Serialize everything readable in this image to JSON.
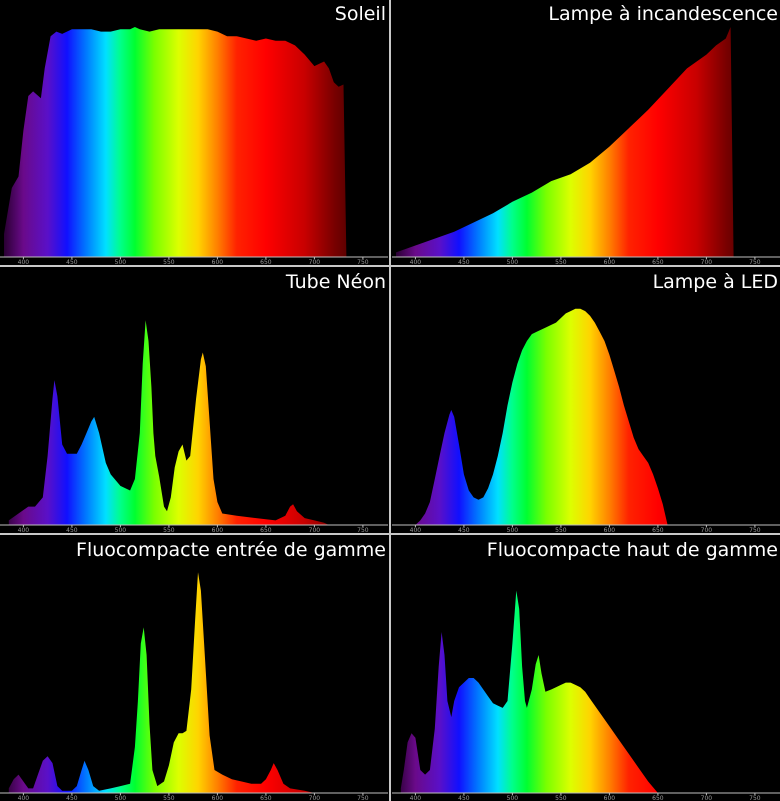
{
  "chart_data": [
    {
      "type": "area",
      "title": "Soleil",
      "xlim": [
        380,
        750
      ],
      "x_ticks": [
        400,
        450,
        500,
        550,
        600,
        650,
        700,
        750
      ],
      "ylim": [
        0,
        100
      ],
      "points": [
        [
          380,
          10
        ],
        [
          388,
          30
        ],
        [
          395,
          35
        ],
        [
          400,
          55
        ],
        [
          405,
          70
        ],
        [
          410,
          72
        ],
        [
          418,
          69
        ],
        [
          422,
          82
        ],
        [
          428,
          96
        ],
        [
          434,
          98
        ],
        [
          440,
          97
        ],
        [
          450,
          99
        ],
        [
          460,
          99
        ],
        [
          470,
          99
        ],
        [
          480,
          98
        ],
        [
          490,
          98
        ],
        [
          500,
          99
        ],
        [
          510,
          99
        ],
        [
          515,
          100
        ],
        [
          520,
          99
        ],
        [
          530,
          98
        ],
        [
          540,
          99
        ],
        [
          550,
          99
        ],
        [
          560,
          99
        ],
        [
          570,
          99
        ],
        [
          580,
          99
        ],
        [
          590,
          99
        ],
        [
          600,
          98
        ],
        [
          610,
          96
        ],
        [
          620,
          96
        ],
        [
          630,
          95
        ],
        [
          640,
          94
        ],
        [
          650,
          95
        ],
        [
          660,
          94
        ],
        [
          670,
          94
        ],
        [
          680,
          92
        ],
        [
          690,
          88
        ],
        [
          700,
          83
        ],
        [
          705,
          84
        ],
        [
          710,
          85
        ],
        [
          715,
          82
        ],
        [
          720,
          76
        ],
        [
          725,
          74
        ],
        [
          730,
          75
        ],
        [
          733,
          0
        ]
      ]
    },
    {
      "type": "area",
      "title": "Lampe à incandescence",
      "xlim": [
        380,
        750
      ],
      "x_ticks": [
        400,
        450,
        500,
        550,
        600,
        650,
        700,
        750
      ],
      "ylim": [
        0,
        100
      ],
      "points": [
        [
          380,
          2
        ],
        [
          400,
          5
        ],
        [
          420,
          8
        ],
        [
          440,
          11
        ],
        [
          460,
          15
        ],
        [
          480,
          19
        ],
        [
          500,
          24
        ],
        [
          520,
          28
        ],
        [
          540,
          33
        ],
        [
          560,
          36
        ],
        [
          580,
          41
        ],
        [
          600,
          48
        ],
        [
          620,
          56
        ],
        [
          640,
          64
        ],
        [
          660,
          73
        ],
        [
          680,
          82
        ],
        [
          700,
          88
        ],
        [
          710,
          92
        ],
        [
          720,
          95
        ],
        [
          725,
          100
        ],
        [
          728,
          0
        ]
      ]
    },
    {
      "type": "area",
      "title": "Tube Néon",
      "xlim": [
        380,
        750
      ],
      "x_ticks": [
        400,
        450,
        500,
        550,
        600,
        650,
        700,
        750
      ],
      "ylim": [
        0,
        100
      ],
      "points": [
        [
          385,
          2
        ],
        [
          395,
          5
        ],
        [
          405,
          8
        ],
        [
          412,
          8
        ],
        [
          420,
          12
        ],
        [
          425,
          30
        ],
        [
          430,
          55
        ],
        [
          432,
          63
        ],
        [
          435,
          56
        ],
        [
          440,
          35
        ],
        [
          445,
          31
        ],
        [
          450,
          31
        ],
        [
          455,
          31
        ],
        [
          460,
          35
        ],
        [
          465,
          40
        ],
        [
          470,
          45
        ],
        [
          473,
          47
        ],
        [
          478,
          40
        ],
        [
          485,
          27
        ],
        [
          490,
          22
        ],
        [
          500,
          17
        ],
        [
          510,
          15
        ],
        [
          515,
          20
        ],
        [
          520,
          40
        ],
        [
          523,
          70
        ],
        [
          526,
          89
        ],
        [
          529,
          80
        ],
        [
          532,
          60
        ],
        [
          534,
          40
        ],
        [
          536,
          30
        ],
        [
          540,
          21
        ],
        [
          545,
          8
        ],
        [
          548,
          6
        ],
        [
          552,
          12
        ],
        [
          556,
          25
        ],
        [
          560,
          32
        ],
        [
          564,
          35
        ],
        [
          568,
          28
        ],
        [
          572,
          30
        ],
        [
          578,
          55
        ],
        [
          583,
          72
        ],
        [
          585,
          75
        ],
        [
          588,
          69
        ],
        [
          592,
          45
        ],
        [
          596,
          20
        ],
        [
          600,
          10
        ],
        [
          605,
          5
        ],
        [
          620,
          4
        ],
        [
          640,
          3
        ],
        [
          660,
          2
        ],
        [
          670,
          4
        ],
        [
          675,
          8
        ],
        [
          678,
          9
        ],
        [
          682,
          6
        ],
        [
          690,
          3
        ],
        [
          700,
          2
        ],
        [
          710,
          1
        ],
        [
          715,
          0
        ]
      ]
    },
    {
      "type": "area",
      "title": "Lampe à LED",
      "xlim": [
        380,
        750
      ],
      "x_ticks": [
        400,
        450,
        500,
        550,
        600,
        650,
        700,
        750
      ],
      "ylim": [
        0,
        100
      ],
      "points": [
        [
          400,
          0
        ],
        [
          405,
          2
        ],
        [
          410,
          5
        ],
        [
          415,
          10
        ],
        [
          420,
          20
        ],
        [
          425,
          30
        ],
        [
          430,
          40
        ],
        [
          435,
          48
        ],
        [
          437,
          50
        ],
        [
          440,
          47
        ],
        [
          445,
          35
        ],
        [
          450,
          22
        ],
        [
          455,
          15
        ],
        [
          460,
          12
        ],
        [
          465,
          11
        ],
        [
          470,
          12
        ],
        [
          475,
          16
        ],
        [
          480,
          22
        ],
        [
          485,
          30
        ],
        [
          490,
          40
        ],
        [
          495,
          52
        ],
        [
          500,
          62
        ],
        [
          505,
          70
        ],
        [
          510,
          76
        ],
        [
          515,
          80
        ],
        [
          520,
          83
        ],
        [
          525,
          84
        ],
        [
          530,
          85
        ],
        [
          535,
          86
        ],
        [
          540,
          87
        ],
        [
          545,
          88
        ],
        [
          550,
          90
        ],
        [
          555,
          92
        ],
        [
          560,
          93
        ],
        [
          565,
          94
        ],
        [
          570,
          94
        ],
        [
          575,
          93
        ],
        [
          580,
          91
        ],
        [
          585,
          88
        ],
        [
          590,
          84
        ],
        [
          595,
          80
        ],
        [
          600,
          74
        ],
        [
          605,
          67
        ],
        [
          610,
          60
        ],
        [
          615,
          52
        ],
        [
          620,
          45
        ],
        [
          625,
          38
        ],
        [
          630,
          33
        ],
        [
          635,
          30
        ],
        [
          640,
          27
        ],
        [
          645,
          22
        ],
        [
          650,
          16
        ],
        [
          655,
          9
        ],
        [
          660,
          0
        ]
      ]
    },
    {
      "type": "area",
      "title": "Fluocompacte entrée de gamme",
      "xlim": [
        380,
        750
      ],
      "x_ticks": [
        400,
        450,
        500,
        550,
        600,
        650,
        700,
        750
      ],
      "ylim": [
        0,
        100
      ],
      "points": [
        [
          385,
          2
        ],
        [
          390,
          6
        ],
        [
          395,
          8
        ],
        [
          400,
          5
        ],
        [
          405,
          2
        ],
        [
          410,
          2
        ],
        [
          415,
          8
        ],
        [
          420,
          14
        ],
        [
          425,
          16
        ],
        [
          430,
          13
        ],
        [
          435,
          3
        ],
        [
          440,
          1
        ],
        [
          450,
          1
        ],
        [
          455,
          3
        ],
        [
          460,
          10
        ],
        [
          463,
          14
        ],
        [
          467,
          10
        ],
        [
          472,
          3
        ],
        [
          478,
          1
        ],
        [
          490,
          2
        ],
        [
          500,
          3
        ],
        [
          510,
          4
        ],
        [
          515,
          20
        ],
        [
          518,
          40
        ],
        [
          521,
          65
        ],
        [
          524,
          72
        ],
        [
          527,
          60
        ],
        [
          530,
          30
        ],
        [
          533,
          10
        ],
        [
          538,
          3
        ],
        [
          545,
          5
        ],
        [
          550,
          12
        ],
        [
          555,
          22
        ],
        [
          560,
          26
        ],
        [
          564,
          26
        ],
        [
          568,
          27
        ],
        [
          573,
          45
        ],
        [
          577,
          75
        ],
        [
          580,
          96
        ],
        [
          583,
          88
        ],
        [
          587,
          60
        ],
        [
          592,
          25
        ],
        [
          597,
          10
        ],
        [
          605,
          8
        ],
        [
          615,
          6
        ],
        [
          625,
          5
        ],
        [
          635,
          4
        ],
        [
          645,
          4
        ],
        [
          650,
          6
        ],
        [
          655,
          10
        ],
        [
          658,
          13
        ],
        [
          662,
          10
        ],
        [
          668,
          4
        ],
        [
          675,
          2
        ],
        [
          690,
          1
        ],
        [
          700,
          0
        ]
      ]
    },
    {
      "type": "area",
      "title": "Fluocompacte haut de gamme",
      "xlim": [
        380,
        750
      ],
      "x_ticks": [
        400,
        450,
        500,
        550,
        600,
        650,
        700,
        750
      ],
      "ylim": [
        0,
        100
      ],
      "points": [
        [
          385,
          2
        ],
        [
          388,
          10
        ],
        [
          392,
          22
        ],
        [
          396,
          26
        ],
        [
          400,
          24
        ],
        [
          405,
          10
        ],
        [
          410,
          8
        ],
        [
          415,
          10
        ],
        [
          420,
          28
        ],
        [
          424,
          55
        ],
        [
          427,
          70
        ],
        [
          430,
          60
        ],
        [
          433,
          40
        ],
        [
          437,
          33
        ],
        [
          440,
          40
        ],
        [
          445,
          46
        ],
        [
          450,
          48
        ],
        [
          455,
          50
        ],
        [
          460,
          50
        ],
        [
          465,
          48
        ],
        [
          470,
          45
        ],
        [
          475,
          42
        ],
        [
          480,
          39
        ],
        [
          485,
          38
        ],
        [
          490,
          37
        ],
        [
          495,
          40
        ],
        [
          500,
          65
        ],
        [
          504,
          88
        ],
        [
          507,
          80
        ],
        [
          510,
          55
        ],
        [
          513,
          40
        ],
        [
          515,
          37
        ],
        [
          520,
          45
        ],
        [
          524,
          56
        ],
        [
          527,
          60
        ],
        [
          530,
          52
        ],
        [
          534,
          44
        ],
        [
          540,
          45
        ],
        [
          545,
          46
        ],
        [
          550,
          47
        ],
        [
          555,
          48
        ],
        [
          560,
          48
        ],
        [
          565,
          47
        ],
        [
          570,
          46
        ],
        [
          575,
          44
        ],
        [
          580,
          41
        ],
        [
          590,
          35
        ],
        [
          600,
          29
        ],
        [
          610,
          23
        ],
        [
          620,
          17
        ],
        [
          630,
          11
        ],
        [
          640,
          5
        ],
        [
          650,
          0
        ]
      ]
    }
  ],
  "icons": {
    "separator_color": "#c8c8c8",
    "axis_color": "#bfbfbf"
  }
}
